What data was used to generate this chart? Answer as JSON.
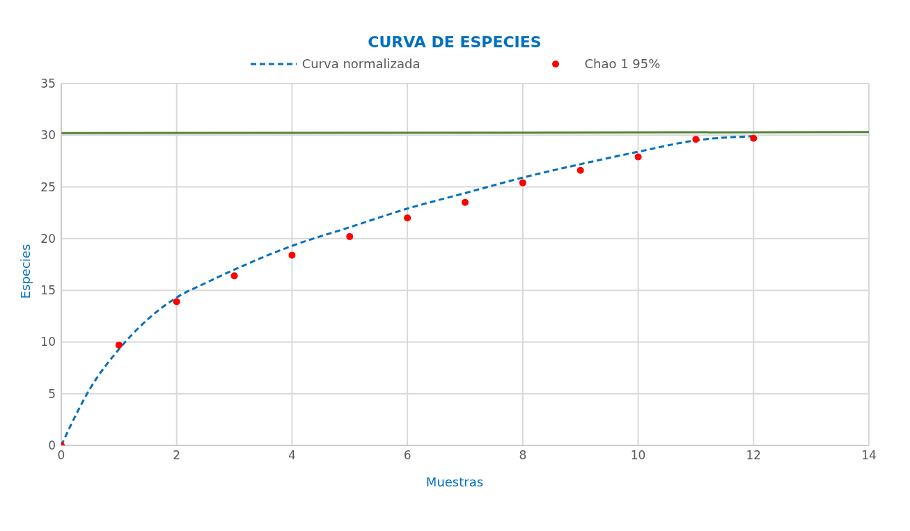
{
  "chart_data": {
    "type": "line",
    "title": "CURVA DE ESPECIES",
    "xlabel": "Muestras",
    "ylabel": "Especies",
    "xlim": [
      0,
      14
    ],
    "xticks": [
      0,
      2,
      4,
      6,
      8,
      10,
      12,
      14
    ],
    "ylim": [
      0,
      35
    ],
    "yticks": [
      0,
      5,
      10,
      15,
      20,
      25,
      30,
      35
    ],
    "grid": true,
    "legend": "top",
    "series": [
      {
        "name": "Curva normalizada",
        "line_style": "dashed",
        "marker": "none",
        "color": "#0070c0",
        "x": [
          0,
          0.5,
          1,
          1.5,
          2,
          2.5,
          3,
          4,
          5,
          6,
          7,
          8,
          9,
          10,
          11,
          12
        ],
        "values": [
          0,
          5.5,
          9.3,
          12.2,
          14.3,
          15.7,
          17.0,
          19.3,
          21.1,
          22.9,
          24.4,
          25.9,
          27.2,
          28.4,
          29.5,
          29.9
        ]
      },
      {
        "name": "Chao 1 95%",
        "type": "scatter",
        "marker": "circle",
        "color": "#ff0000",
        "x": [
          0,
          1,
          2,
          3,
          4,
          5,
          6,
          7,
          8,
          9,
          10,
          11,
          12
        ],
        "values": [
          0,
          9.7,
          13.9,
          16.4,
          18.4,
          20.2,
          22.0,
          23.5,
          25.4,
          26.6,
          27.9,
          29.6,
          29.7
        ]
      },
      {
        "line_style": "solid",
        "marker": "none",
        "color": "#548235",
        "x": [
          0,
          14
        ],
        "values": [
          30.2,
          30.3
        ]
      }
    ]
  }
}
